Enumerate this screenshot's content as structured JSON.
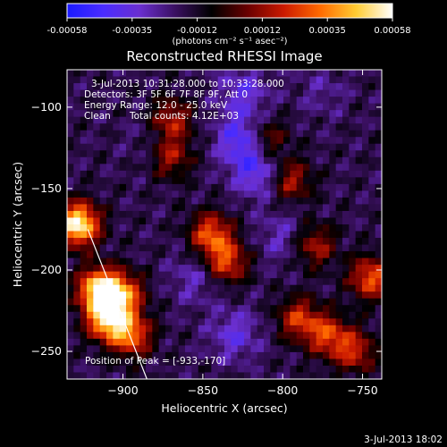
{
  "colorbar": {
    "ticks": [
      "-0.00058",
      "-0.00035",
      "-0.00012",
      "0.00012",
      "0.00035",
      "0.00058"
    ],
    "units": "(photons cm⁻² s⁻¹ asec⁻²)",
    "stops": [
      "#1a1aff",
      "#4a2cff",
      "#6a2fd0",
      "#3a1060",
      "#000000",
      "#6a0000",
      "#cc1a00",
      "#ff6a00",
      "#ffcc33",
      "#ffffff"
    ]
  },
  "info": {
    "time_range": "3-Jul-2013 10:31:28.000 to 10:33:28.000",
    "detectors": "Detectors: 3F 5F 6F 7F 8F 9F, Att 0",
    "energy": "Energy Range: 12.0 - 25.0 keV",
    "method": "Clean",
    "counts": "Total counts: 4.12E+03",
    "peak": "Position of Peak = [-933,-170]"
  },
  "footer": {
    "timestamp": "3-Jul-2013 18:02"
  },
  "chart_data": {
    "type": "heatmap",
    "title": "Reconstructed RHESSI Image",
    "xlabel": "Heliocentric X (arcsec)",
    "ylabel": "Heliocentric Y (arcsec)",
    "xlim": [
      -935,
      -738
    ],
    "ylim": [
      -267,
      -77
    ],
    "x_ticks": [
      -900,
      -850,
      -800,
      -750
    ],
    "y_ticks": [
      -250,
      -200,
      -150,
      -100
    ],
    "peak": {
      "x": -933,
      "y": -170
    },
    "limb_line": {
      "x": [
        -922,
        -885
      ],
      "y": [
        -175,
        -267
      ]
    },
    "value_range": [
      -0.00058,
      0.00058
    ],
    "grid_size": [
      48,
      46
    ],
    "hot_spots": [
      {
        "x": -928,
        "y": -172,
        "value": 0.00058
      },
      {
        "x": -915,
        "y": -212,
        "value": 0.00052
      },
      {
        "x": -910,
        "y": -230,
        "value": 0.00045
      },
      {
        "x": -900,
        "y": -215,
        "value": 0.0003
      },
      {
        "x": -895,
        "y": -240,
        "value": 0.0003
      },
      {
        "x": -845,
        "y": -178,
        "value": 0.00028
      },
      {
        "x": -835,
        "y": -195,
        "value": 0.00025
      },
      {
        "x": -790,
        "y": -230,
        "value": 0.0002
      },
      {
        "x": -772,
        "y": -240,
        "value": 0.00022
      },
      {
        "x": -745,
        "y": -205,
        "value": 0.00028
      },
      {
        "x": -755,
        "y": -250,
        "value": 0.00018
      },
      {
        "x": -870,
        "y": -108,
        "value": 0.00018
      },
      {
        "x": -870,
        "y": -130,
        "value": 0.00015
      },
      {
        "x": -795,
        "y": -145,
        "value": 0.00016
      },
      {
        "x": -780,
        "y": -185,
        "value": 0.00015
      },
      {
        "x": -810,
        "y": -120,
        "value": 0.00013
      }
    ],
    "cold_spots": [
      {
        "x": -825,
        "y": -120,
        "value": -0.00045
      },
      {
        "x": -815,
        "y": -140,
        "value": -0.0004
      },
      {
        "x": -825,
        "y": -90,
        "value": -0.00035
      },
      {
        "x": -830,
        "y": -240,
        "value": -0.00035
      },
      {
        "x": -855,
        "y": -205,
        "value": -0.0003
      },
      {
        "x": -880,
        "y": -120,
        "value": -0.00025
      },
      {
        "x": -800,
        "y": -180,
        "value": -0.0003
      },
      {
        "x": -775,
        "y": -90,
        "value": -0.00025
      }
    ]
  }
}
